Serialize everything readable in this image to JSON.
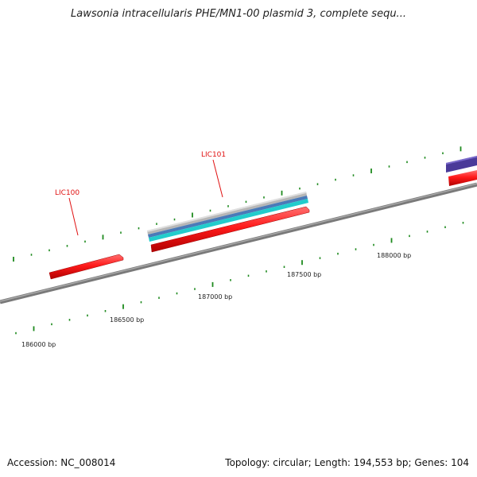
{
  "header": {
    "title": "Lawsonia intracellularis PHE/MN1-00 plasmid 3, complete sequ..."
  },
  "footer": {
    "accession": "Accession: NC_008014",
    "summary": "Topology: circular; Length: 194,553 bp; Genes: 104"
  },
  "genes": [
    {
      "label": "LIC100",
      "color": "#ff1a1a"
    },
    {
      "label": "LIC101",
      "color": "#ff1a1a"
    }
  ],
  "scale_labels": [
    "186000 bp",
    "186500 bp",
    "187000 bp",
    "187500 bp",
    "188000 bp"
  ],
  "colors": {
    "backbone": "#808080",
    "gene": "#ff1a1a",
    "tick": "#1e8a1e",
    "feature_gray": "#a8a8a8",
    "feature_blue": "#4a7ab8",
    "feature_cyan": "#22cccc",
    "feature_purple": "#4a3a99",
    "label": "#e01010"
  }
}
